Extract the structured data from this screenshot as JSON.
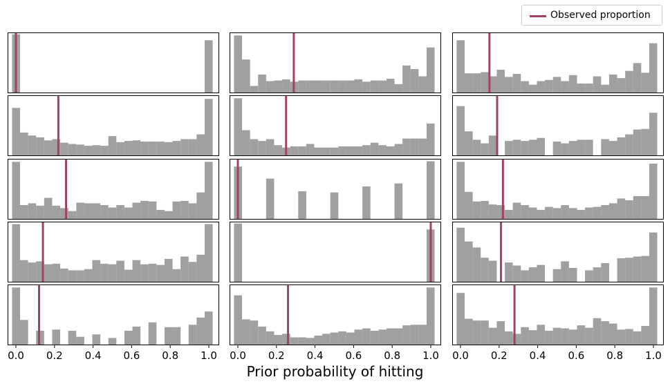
{
  "chart_data": {
    "type": "histogram-grid",
    "rows": 5,
    "cols": 3,
    "xlabel": "Prior probability of hitting",
    "xlim": [
      0,
      1
    ],
    "xticks": [
      0.0,
      0.2,
      0.4,
      0.6,
      0.8,
      1.0
    ],
    "xtick_labels": [
      "0.0",
      "0.2",
      "0.4",
      "0.6",
      "0.8",
      "1.0"
    ],
    "bins": 25,
    "legend": {
      "label": "Observed proportion",
      "position": "top-right"
    },
    "colors": {
      "bars": "#a0a0a0",
      "observed_line": "#a3406a"
    },
    "panels": [
      {
        "observed": 0.0,
        "heights": [
          0.97,
          0,
          0,
          0,
          0,
          0,
          0,
          0,
          0,
          0,
          0,
          0,
          0,
          0,
          0,
          0,
          0,
          0,
          0,
          0,
          0,
          0,
          0,
          0,
          0.87
        ]
      },
      {
        "observed": 0.29,
        "heights": [
          0.95,
          0.55,
          0.11,
          0.3,
          0.19,
          0.2,
          0.22,
          0.18,
          0.2,
          0.2,
          0.2,
          0.2,
          0.2,
          0.2,
          0.2,
          0.22,
          0.18,
          0.2,
          0.2,
          0.23,
          0.14,
          0.45,
          0.39,
          0.27,
          0.75
        ]
      },
      {
        "observed": 0.15,
        "heights": [
          0.87,
          0.32,
          0.32,
          0.34,
          0.27,
          0.38,
          0.26,
          0.31,
          0.19,
          0.13,
          0.19,
          0.21,
          0.26,
          0.19,
          0.29,
          0.15,
          0.15,
          0.27,
          0.13,
          0.3,
          0.24,
          0.36,
          0.49,
          0.33,
          0.82
        ]
      },
      {
        "observed": 0.22,
        "heights": [
          0.79,
          0.38,
          0.33,
          0.3,
          0.25,
          0.27,
          0.21,
          0.19,
          0.18,
          0.16,
          0.17,
          0.16,
          0.32,
          0.22,
          0.24,
          0.25,
          0.23,
          0.23,
          0.23,
          0.22,
          0.24,
          0.27,
          0.27,
          0.35,
          0.94
        ]
      },
      {
        "observed": 0.25,
        "heights": [
          0.95,
          0.42,
          0.27,
          0.24,
          0.27,
          0.17,
          0.13,
          0.15,
          0.15,
          0.19,
          0.13,
          0.13,
          0.13,
          0.15,
          0.15,
          0.15,
          0.17,
          0.21,
          0.17,
          0.15,
          0.19,
          0.28,
          0.28,
          0.28,
          0.53
        ]
      },
      {
        "observed": 0.19,
        "heights": [
          0.82,
          0.4,
          0.26,
          0.2,
          0.33,
          0,
          0.24,
          0.26,
          0.24,
          0.26,
          0.29,
          0,
          0.23,
          0.2,
          0.24,
          0.26,
          0.26,
          0,
          0.27,
          0.24,
          0.3,
          0.35,
          0.43,
          0.44,
          0.71
        ]
      },
      {
        "observed": 0.26,
        "heights": [
          0.95,
          0.23,
          0.26,
          0.22,
          0.35,
          0.22,
          0.18,
          0.13,
          0.27,
          0.26,
          0.26,
          0.23,
          0.19,
          0.23,
          0.19,
          0.27,
          0.3,
          0.29,
          0.15,
          0.13,
          0.29,
          0.3,
          0.26,
          0.44,
          0.95
        ]
      },
      {
        "observed": 0.0,
        "heights": [
          0.87,
          0,
          0,
          0,
          0.67,
          0,
          0,
          0,
          0.46,
          0,
          0,
          0,
          0.44,
          0,
          0,
          0,
          0.54,
          0,
          0,
          0,
          0.59,
          0,
          0,
          0,
          0.96
        ]
      },
      {
        "observed": 0.22,
        "heights": [
          0.95,
          0.45,
          0.29,
          0.3,
          0.24,
          0.23,
          0.15,
          0.27,
          0.23,
          0.19,
          0.15,
          0.2,
          0.18,
          0.23,
          0.18,
          0.15,
          0.19,
          0.2,
          0.23,
          0.26,
          0.34,
          0.31,
          0.38,
          0.38,
          0.92
        ]
      },
      {
        "observed": 0.14,
        "heights": [
          0.96,
          0.36,
          0.32,
          0.34,
          0.29,
          0.3,
          0.22,
          0.19,
          0.19,
          0.21,
          0.36,
          0.3,
          0.29,
          0.35,
          0.2,
          0.36,
          0.29,
          0.3,
          0.28,
          0.38,
          0.21,
          0.42,
          0.33,
          0.45,
          0.96
        ]
      },
      {
        "observed": 1.0,
        "heights": [
          0.97,
          0,
          0,
          0,
          0,
          0,
          0,
          0,
          0,
          0,
          0,
          0,
          0,
          0,
          0,
          0,
          0,
          0,
          0,
          0,
          0,
          0,
          0,
          0,
          0.87
        ]
      },
      {
        "observed": 0.21,
        "heights": [
          0.9,
          0.67,
          0.57,
          0.4,
          0.35,
          0,
          0.32,
          0.27,
          0.19,
          0.24,
          0.28,
          0,
          0.21,
          0.34,
          0.23,
          0,
          0.19,
          0.24,
          0.31,
          0,
          0.39,
          0.4,
          0.42,
          0.43,
          0.82
        ]
      },
      {
        "observed": 0.12,
        "heights": [
          0.95,
          0.41,
          0,
          0.23,
          0,
          0.25,
          0,
          0.23,
          0.13,
          0,
          0.17,
          0,
          0.11,
          0,
          0.23,
          0.3,
          0,
          0.37,
          0,
          0.29,
          0.29,
          0,
          0.33,
          0.45,
          0.55
        ]
      },
      {
        "observed": 0.26,
        "heights": [
          0.82,
          0.42,
          0.4,
          0.3,
          0.22,
          0.16,
          0.18,
          0.12,
          0.12,
          0.11,
          0.15,
          0.18,
          0.2,
          0.22,
          0.2,
          0.25,
          0.27,
          0.23,
          0.25,
          0.27,
          0.27,
          0.32,
          0.33,
          0.33,
          0.95
        ]
      },
      {
        "observed": 0.28,
        "heights": [
          0.86,
          0.43,
          0.4,
          0.4,
          0.28,
          0.39,
          0.22,
          0.18,
          0.29,
          0.24,
          0.33,
          0.23,
          0.28,
          0.27,
          0.25,
          0.32,
          0.28,
          0.44,
          0.39,
          0.35,
          0.25,
          0.26,
          0.22,
          0.31,
          0.95
        ]
      }
    ]
  }
}
